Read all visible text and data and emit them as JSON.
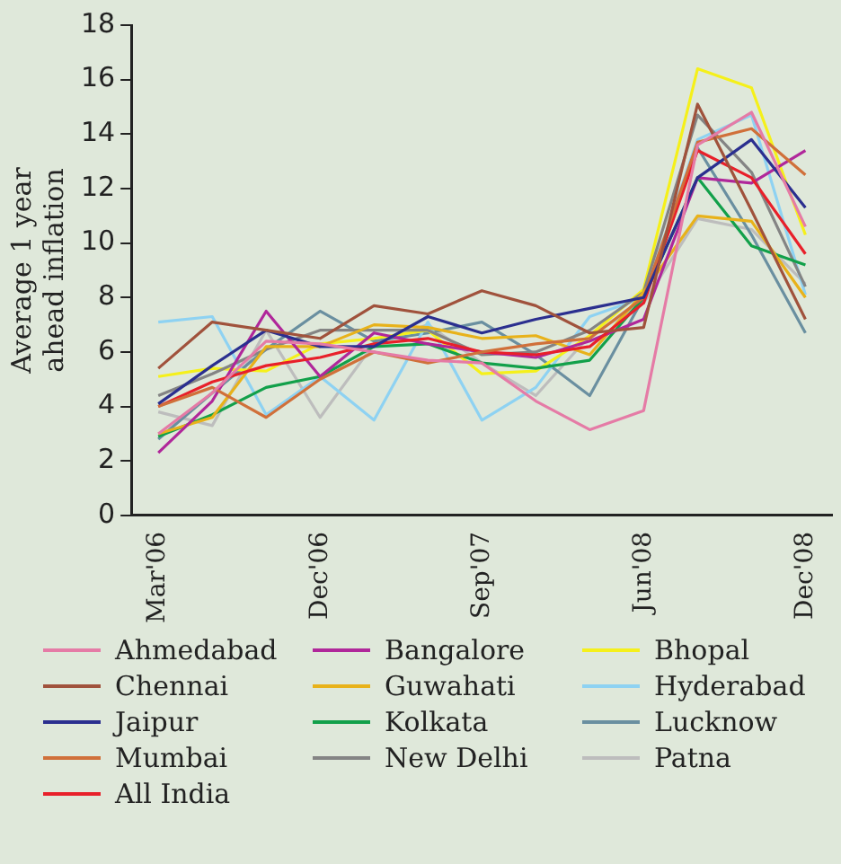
{
  "chart_data": {
    "type": "line",
    "ylabel": "Average 1 year\nahead inflation",
    "categories": [
      "Mar'06",
      null,
      null,
      "Dec'06",
      null,
      null,
      "Sep'07",
      null,
      null,
      "Jun'08",
      null,
      null,
      "Dec'08"
    ],
    "ylim": [
      0,
      18
    ],
    "yticks": [
      0,
      2,
      4,
      6,
      8,
      10,
      12,
      14,
      16,
      18
    ],
    "grid": false,
    "legend": "bottom",
    "marker": "none",
    "series": [
      {
        "name": "Ahmedabad",
        "color": "#e57ba6",
        "values": [
          3.0,
          4.5,
          6.4,
          6.3,
          6.0,
          5.7,
          5.6,
          4.2,
          3.15,
          3.85,
          13.6,
          14.8,
          10.6
        ]
      },
      {
        "name": "Chennai",
        "color": "#a0523c",
        "values": [
          5.4,
          7.1,
          6.8,
          6.5,
          7.7,
          7.4,
          8.25,
          7.7,
          6.7,
          6.9,
          15.1,
          11.2,
          7.2
        ]
      },
      {
        "name": "Jaipur",
        "color": "#2b2f8f",
        "values": [
          4.1,
          5.5,
          6.8,
          6.2,
          6.2,
          7.3,
          6.7,
          7.2,
          7.6,
          8.0,
          12.4,
          13.8,
          11.3
        ]
      },
      {
        "name": "Mumbai",
        "color": "#d0703a",
        "values": [
          4.0,
          4.7,
          3.6,
          5.0,
          6.0,
          5.6,
          6.0,
          6.3,
          6.5,
          8.0,
          13.7,
          14.2,
          12.5
        ]
      },
      {
        "name": "All India",
        "color": "#e8202a",
        "values": [
          4.0,
          4.9,
          5.5,
          5.8,
          6.3,
          6.5,
          6.0,
          5.9,
          6.2,
          7.8,
          13.4,
          12.4,
          9.6
        ]
      },
      {
        "name": "Bangalore",
        "color": "#b0279a",
        "values": [
          2.3,
          4.2,
          7.5,
          5.1,
          6.7,
          6.3,
          6.0,
          5.8,
          6.4,
          7.2,
          12.4,
          12.2,
          13.4
        ]
      },
      {
        "name": "Guwahati",
        "color": "#e8b21a",
        "values": [
          3.0,
          3.6,
          6.2,
          6.2,
          7.0,
          6.9,
          6.5,
          6.6,
          5.9,
          8.2,
          11.0,
          10.8,
          8.0
        ]
      },
      {
        "name": "Kolkata",
        "color": "#12a04a",
        "values": [
          2.9,
          3.7,
          4.7,
          5.1,
          6.2,
          6.3,
          5.6,
          5.4,
          5.7,
          8.0,
          12.4,
          9.9,
          9.2
        ]
      },
      {
        "name": "New Delhi",
        "color": "#848484",
        "values": [
          4.4,
          5.2,
          6.1,
          6.8,
          6.8,
          6.8,
          5.9,
          6.0,
          6.8,
          8.2,
          14.7,
          12.6,
          8.4
        ]
      },
      {
        "name": "Bhopal",
        "color": "#f5f01a",
        "values": [
          5.1,
          5.4,
          5.3,
          6.3,
          6.5,
          6.8,
          5.2,
          5.3,
          6.6,
          8.3,
          16.4,
          15.7,
          10.3
        ]
      },
      {
        "name": "Hyderabad",
        "color": "#8ed2f2",
        "values": [
          7.1,
          7.3,
          3.7,
          5.1,
          3.5,
          7.1,
          3.5,
          4.7,
          7.3,
          8.0,
          13.8,
          14.7,
          8.1
        ]
      },
      {
        "name": "Lucknow",
        "color": "#6a8fa0",
        "values": [
          2.8,
          4.5,
          6.1,
          7.5,
          6.4,
          6.7,
          7.1,
          5.9,
          4.4,
          8.0,
          13.5,
          10.3,
          6.7
        ]
      },
      {
        "name": "Patna",
        "color": "#bdbdbd",
        "values": [
          3.8,
          3.3,
          6.8,
          3.6,
          6.3,
          7.0,
          5.6,
          4.4,
          6.6,
          7.8,
          10.9,
          10.5,
          8.5
        ]
      }
    ]
  }
}
